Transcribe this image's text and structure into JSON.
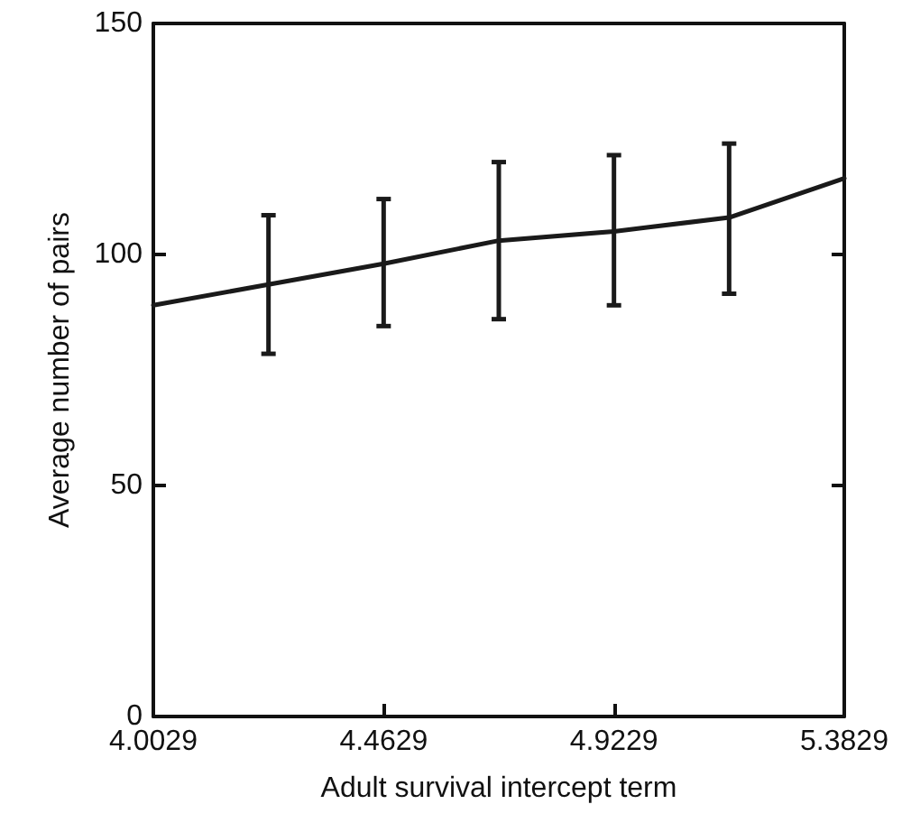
{
  "chart_data": {
    "type": "line",
    "xlabel": "Adult survival intercept term",
    "ylabel": "Average number of pairs",
    "x": [
      4.0029,
      4.2329,
      4.4629,
      4.6929,
      4.9229,
      5.1529,
      5.3829
    ],
    "series": [
      {
        "color": "#1a1a1a",
        "values": [
          89,
          93.5,
          98,
          103,
          105,
          108,
          116.5
        ],
        "errors": [
          null,
          [
            78.5,
            108.5
          ],
          [
            84.5,
            112
          ],
          [
            86,
            120
          ],
          [
            89,
            121.5
          ],
          [
            91.5,
            124
          ],
          null
        ]
      }
    ],
    "xlim": [
      4.0029,
      5.3829
    ],
    "xticks": [
      4.0029,
      4.4629,
      4.9229,
      5.3829
    ],
    "ylim": [
      0,
      150
    ],
    "yticks": [
      0,
      50,
      100,
      150
    ],
    "grid": false,
    "marker": "none",
    "line_style": "solid"
  }
}
